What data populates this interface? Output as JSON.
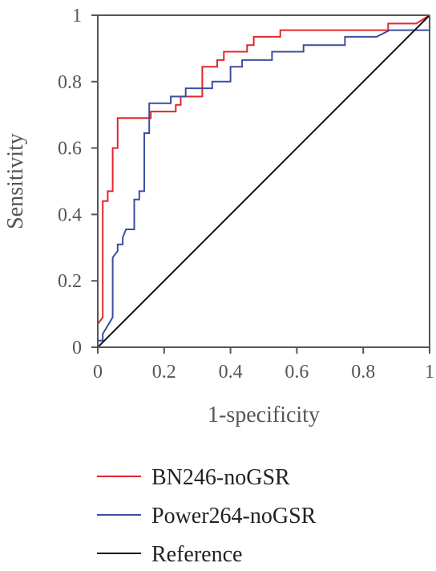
{
  "chart_data": {
    "type": "line",
    "xlabel": "1-specificity",
    "ylabel": "Sensitivity",
    "xlim": [
      0,
      1
    ],
    "ylim": [
      0,
      1
    ],
    "x_ticks": [
      "0",
      "0.2",
      "0.4",
      "0.6",
      "0.8",
      "1"
    ],
    "y_ticks": [
      "0",
      "0.2",
      "0.4",
      "0.6",
      "0.8",
      "1"
    ],
    "grid": false,
    "legend_position": "bottom",
    "series": [
      {
        "name": "BN246-noGSR",
        "color": "#e3262b",
        "points": [
          [
            0,
            0.02
          ],
          [
            0,
            0.07
          ],
          [
            0.015,
            0.09
          ],
          [
            0.015,
            0.44
          ],
          [
            0.03,
            0.44
          ],
          [
            0.03,
            0.47
          ],
          [
            0.045,
            0.47
          ],
          [
            0.045,
            0.6
          ],
          [
            0.06,
            0.6
          ],
          [
            0.06,
            0.69
          ],
          [
            0.16,
            0.69
          ],
          [
            0.16,
            0.71
          ],
          [
            0.235,
            0.71
          ],
          [
            0.235,
            0.73
          ],
          [
            0.25,
            0.73
          ],
          [
            0.25,
            0.755
          ],
          [
            0.315,
            0.755
          ],
          [
            0.315,
            0.845
          ],
          [
            0.36,
            0.845
          ],
          [
            0.36,
            0.865
          ],
          [
            0.38,
            0.865
          ],
          [
            0.38,
            0.89
          ],
          [
            0.45,
            0.89
          ],
          [
            0.45,
            0.91
          ],
          [
            0.47,
            0.91
          ],
          [
            0.47,
            0.935
          ],
          [
            0.55,
            0.935
          ],
          [
            0.55,
            0.955
          ],
          [
            0.875,
            0.955
          ],
          [
            0.875,
            0.975
          ],
          [
            0.96,
            0.975
          ],
          [
            1,
            1
          ]
        ]
      },
      {
        "name": "Power264-noGSR",
        "color": "#3b4ea0",
        "points": [
          [
            0,
            0
          ],
          [
            0,
            0.02
          ],
          [
            0.015,
            0.02
          ],
          [
            0.015,
            0.04
          ],
          [
            0.045,
            0.09
          ],
          [
            0.045,
            0.27
          ],
          [
            0.06,
            0.29
          ],
          [
            0.06,
            0.31
          ],
          [
            0.075,
            0.31
          ],
          [
            0.075,
            0.33
          ],
          [
            0.085,
            0.355
          ],
          [
            0.11,
            0.355
          ],
          [
            0.11,
            0.445
          ],
          [
            0.125,
            0.445
          ],
          [
            0.125,
            0.47
          ],
          [
            0.14,
            0.47
          ],
          [
            0.14,
            0.645
          ],
          [
            0.155,
            0.645
          ],
          [
            0.155,
            0.735
          ],
          [
            0.22,
            0.735
          ],
          [
            0.22,
            0.755
          ],
          [
            0.265,
            0.755
          ],
          [
            0.265,
            0.78
          ],
          [
            0.345,
            0.78
          ],
          [
            0.345,
            0.8
          ],
          [
            0.4,
            0.8
          ],
          [
            0.4,
            0.845
          ],
          [
            0.435,
            0.845
          ],
          [
            0.435,
            0.865
          ],
          [
            0.525,
            0.865
          ],
          [
            0.525,
            0.89
          ],
          [
            0.62,
            0.89
          ],
          [
            0.62,
            0.91
          ],
          [
            0.745,
            0.91
          ],
          [
            0.745,
            0.935
          ],
          [
            0.84,
            0.935
          ],
          [
            0.88,
            0.955
          ],
          [
            1,
            0.955
          ]
        ]
      },
      {
        "name": "Reference",
        "color": "#111111",
        "points": [
          [
            0,
            0
          ],
          [
            1,
            1
          ]
        ]
      }
    ]
  }
}
